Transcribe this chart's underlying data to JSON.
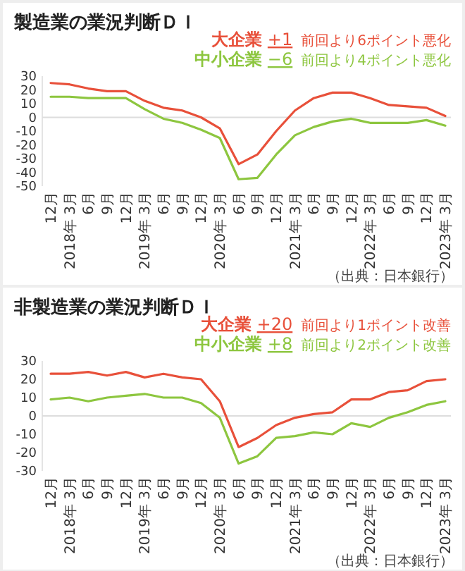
{
  "chart_data": [
    {
      "type": "line",
      "title": "製造業の業況判断ＤＩ",
      "categories": [
        "12月",
        "2018年 3月",
        "6月",
        "9月",
        "12月",
        "2019年 3月",
        "6月",
        "9月",
        "12月",
        "2020年 3月",
        "6月",
        "9月",
        "12月",
        "2021年 3月",
        "6月",
        "9月",
        "12月",
        "2022年 3月",
        "6月",
        "9月",
        "12月",
        "2023年 3月"
      ],
      "series": [
        {
          "name": "大企業",
          "color": "#e8503a",
          "values": [
            25,
            24,
            21,
            19,
            19,
            12,
            7,
            5,
            0,
            -8,
            -34,
            -27,
            -10,
            5,
            14,
            18,
            18,
            14,
            9,
            8,
            7,
            1
          ]
        },
        {
          "name": "中小企業",
          "color": "#8dc63f",
          "values": [
            15,
            15,
            14,
            14,
            14,
            6,
            -1,
            -4,
            -9,
            -15,
            -45,
            -44,
            -27,
            -13,
            -7,
            -3,
            -1,
            -4,
            -4,
            -4,
            -2,
            -6
          ]
        }
      ],
      "ylim": [
        -50,
        30
      ],
      "yticks": [
        -50,
        -40,
        -30,
        -20,
        -10,
        0,
        10,
        20,
        30
      ],
      "ref_lines": [
        {
          "axis": "y",
          "value": 0,
          "color": "#dddddd"
        }
      ],
      "annotations": [
        "+1",
        "前回より6ポイント悪化",
        "−6",
        "前回より4ポイント悪化",
        "（出典：日本銀行）"
      ]
    },
    {
      "type": "line",
      "title": "非製造業の業況判断ＤＩ",
      "categories": [
        "12月",
        "2018年 3月",
        "6月",
        "9月",
        "12月",
        "2019年 3月",
        "6月",
        "9月",
        "12月",
        "2020年 3月",
        "6月",
        "9月",
        "12月",
        "2021年 3月",
        "6月",
        "9月",
        "12月",
        "2022年 3月",
        "6月",
        "9月",
        "12月",
        "2023年 3月"
      ],
      "series": [
        {
          "name": "大企業",
          "color": "#e8503a",
          "values": [
            23,
            23,
            24,
            22,
            24,
            21,
            23,
            21,
            20,
            8,
            -17,
            -12,
            -5,
            -1,
            1,
            2,
            9,
            9,
            13,
            14,
            19,
            20
          ]
        },
        {
          "name": "中小企業",
          "color": "#8dc63f",
          "values": [
            9,
            10,
            8,
            10,
            11,
            12,
            10,
            10,
            7,
            -1,
            -26,
            -22,
            -12,
            -11,
            -9,
            -10,
            -4,
            -6,
            -1,
            2,
            6,
            8
          ]
        }
      ],
      "ylim": [
        -30,
        30
      ],
      "yticks": [
        -30,
        -20,
        -10,
        0,
        10,
        20,
        30
      ],
      "ref_lines": [
        {
          "axis": "y",
          "value": 0,
          "color": "#dddddd"
        }
      ],
      "annotations": [
        "+20",
        "前回より1ポイント改善",
        "+8",
        "前回より2ポイント改善",
        "（出典：日本銀行）"
      ]
    }
  ]
}
